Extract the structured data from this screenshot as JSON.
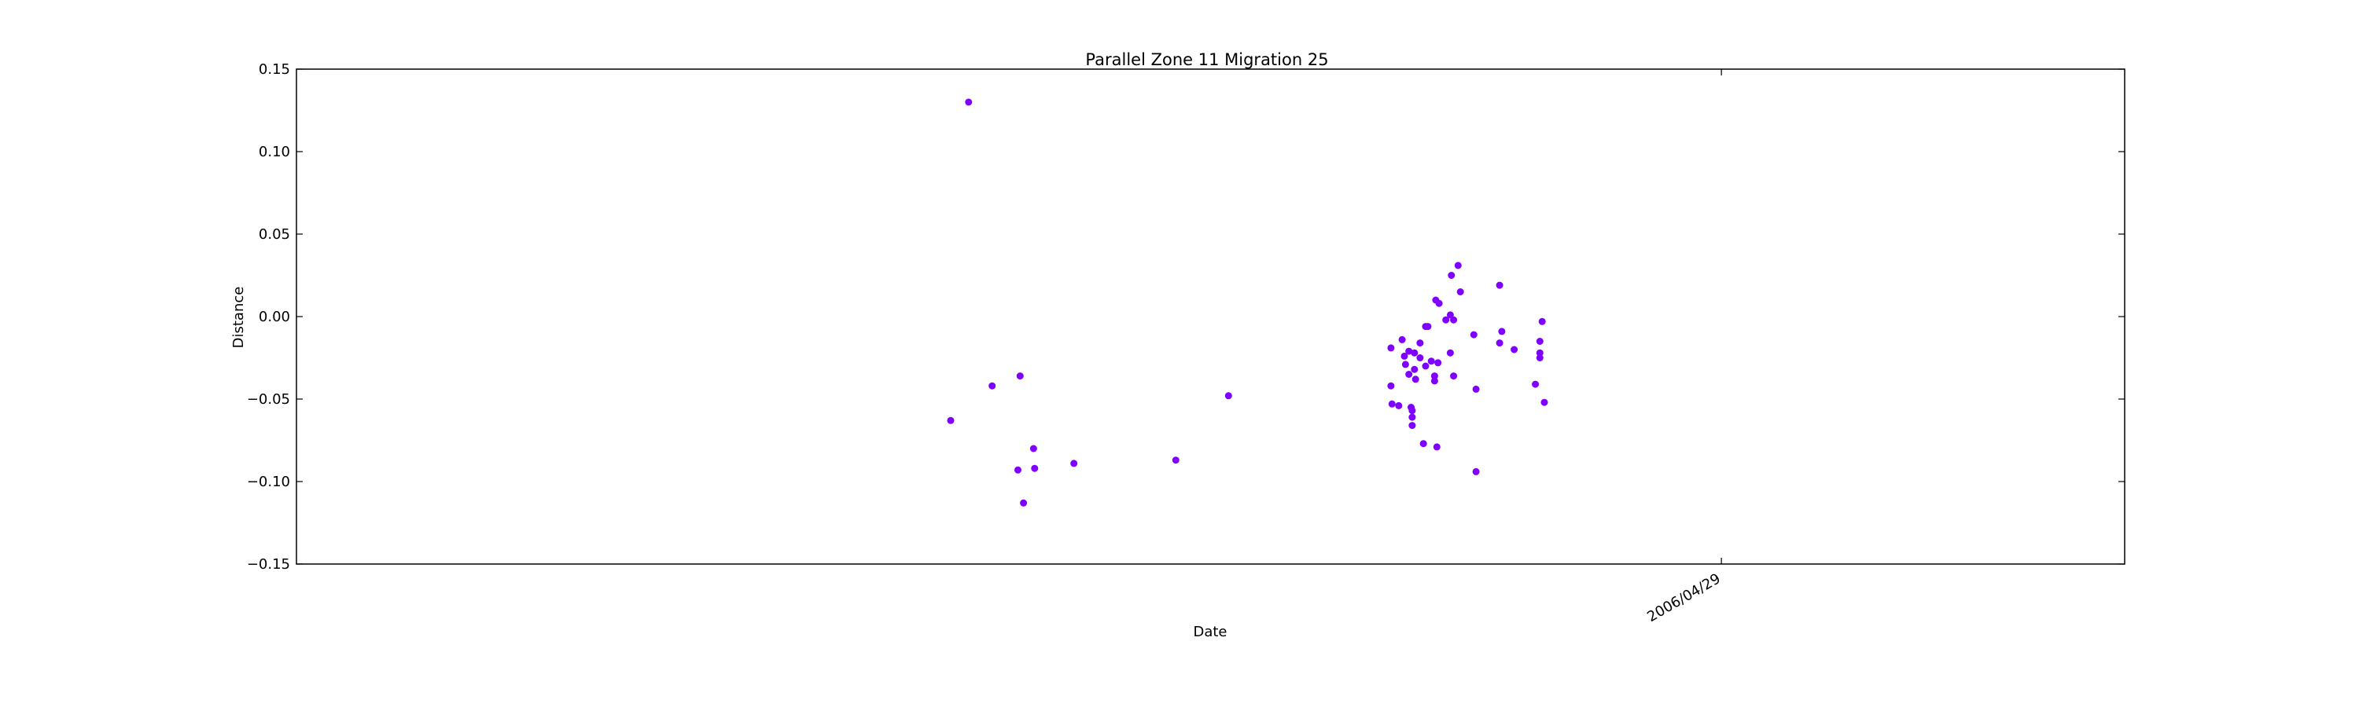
{
  "chart_data": {
    "type": "scatter",
    "title": "Parallel Zone 11 Migration 25",
    "xlabel": "Date",
    "ylabel": "Distance",
    "ylim": [
      -0.15,
      0.15
    ],
    "yticks": [
      -0.15,
      -0.1,
      -0.05,
      0.0,
      0.05,
      0.1,
      0.15
    ],
    "ytick_labels": [
      "−0.15",
      "−0.10",
      "−0.05",
      "0.00",
      "0.05",
      "0.10",
      "0.15"
    ],
    "xlim": [
      "2006-03-07",
      "2006-05-14"
    ],
    "xticks": [
      "2006-04-29"
    ],
    "xtick_labels": [
      "2006/04/29"
    ],
    "grid": false,
    "color": "#7f00ff",
    "points": [
      {
        "x": "2006-03-31 08:00",
        "y": -0.063
      },
      {
        "x": "2006-04-01 00:00",
        "y": 0.13
      },
      {
        "x": "2006-04-01 21:00",
        "y": -0.042
      },
      {
        "x": "2006-04-02 20:00",
        "y": -0.093
      },
      {
        "x": "2006-04-02 22:00",
        "y": -0.036
      },
      {
        "x": "2006-04-03 01:00",
        "y": -0.113
      },
      {
        "x": "2006-04-03 10:00",
        "y": -0.08
      },
      {
        "x": "2006-04-03 11:00",
        "y": -0.092
      },
      {
        "x": "2006-04-04 22:00",
        "y": -0.089
      },
      {
        "x": "2006-04-08 17:00",
        "y": -0.087
      },
      {
        "x": "2006-04-10 16:00",
        "y": -0.048
      },
      {
        "x": "2006-04-16 17:00",
        "y": -0.019
      },
      {
        "x": "2006-04-16 17:00",
        "y": -0.042
      },
      {
        "x": "2006-04-16 18:00",
        "y": -0.053
      },
      {
        "x": "2006-04-17 00:00",
        "y": -0.054
      },
      {
        "x": "2006-04-17 03:00",
        "y": -0.014
      },
      {
        "x": "2006-04-17 05:00",
        "y": -0.024
      },
      {
        "x": "2006-04-17 06:00",
        "y": -0.029
      },
      {
        "x": "2006-04-17 09:00",
        "y": -0.021
      },
      {
        "x": "2006-04-17 09:00",
        "y": -0.035
      },
      {
        "x": "2006-04-17 11:00",
        "y": -0.055
      },
      {
        "x": "2006-04-17 12:00",
        "y": -0.057
      },
      {
        "x": "2006-04-17 12:00",
        "y": -0.061
      },
      {
        "x": "2006-04-17 12:00",
        "y": -0.066
      },
      {
        "x": "2006-04-17 14:00",
        "y": -0.022
      },
      {
        "x": "2006-04-17 14:00",
        "y": -0.032
      },
      {
        "x": "2006-04-17 15:00",
        "y": -0.038
      },
      {
        "x": "2006-04-17 19:00",
        "y": -0.016
      },
      {
        "x": "2006-04-17 19:00",
        "y": -0.025
      },
      {
        "x": "2006-04-17 22:00",
        "y": -0.077
      },
      {
        "x": "2006-04-18 00:00",
        "y": -0.006
      },
      {
        "x": "2006-04-18 00:00",
        "y": -0.03
      },
      {
        "x": "2006-04-18 02:00",
        "y": -0.006
      },
      {
        "x": "2006-04-18 05:00",
        "y": -0.027
      },
      {
        "x": "2006-04-18 08:00",
        "y": -0.036
      },
      {
        "x": "2006-04-18 08:00",
        "y": -0.039
      },
      {
        "x": "2006-04-18 09:00",
        "y": 0.01
      },
      {
        "x": "2006-04-18 10:00",
        "y": -0.079
      },
      {
        "x": "2006-04-18 11:00",
        "y": -0.028
      },
      {
        "x": "2006-04-18 12:00",
        "y": 0.008
      },
      {
        "x": "2006-04-18 18:00",
        "y": -0.002
      },
      {
        "x": "2006-04-18 22:00",
        "y": 0.001
      },
      {
        "x": "2006-04-18 22:00",
        "y": -0.022
      },
      {
        "x": "2006-04-18 23:00",
        "y": 0.025
      },
      {
        "x": "2006-04-19 01:00",
        "y": -0.002
      },
      {
        "x": "2006-04-19 01:00",
        "y": -0.036
      },
      {
        "x": "2006-04-19 05:00",
        "y": 0.031
      },
      {
        "x": "2006-04-19 07:00",
        "y": 0.015
      },
      {
        "x": "2006-04-19 19:00",
        "y": -0.011
      },
      {
        "x": "2006-04-19 21:00",
        "y": -0.044
      },
      {
        "x": "2006-04-19 21:00",
        "y": -0.094
      },
      {
        "x": "2006-04-20 18:00",
        "y": 0.019
      },
      {
        "x": "2006-04-20 18:00",
        "y": -0.016
      },
      {
        "x": "2006-04-20 20:00",
        "y": -0.009
      },
      {
        "x": "2006-04-21 07:00",
        "y": -0.02
      },
      {
        "x": "2006-04-22 02:00",
        "y": -0.041
      },
      {
        "x": "2006-04-22 06:00",
        "y": -0.015
      },
      {
        "x": "2006-04-22 06:00",
        "y": -0.022
      },
      {
        "x": "2006-04-22 06:00",
        "y": -0.025
      },
      {
        "x": "2006-04-22 08:00",
        "y": -0.003
      },
      {
        "x": "2006-04-22 10:00",
        "y": -0.052
      }
    ]
  }
}
